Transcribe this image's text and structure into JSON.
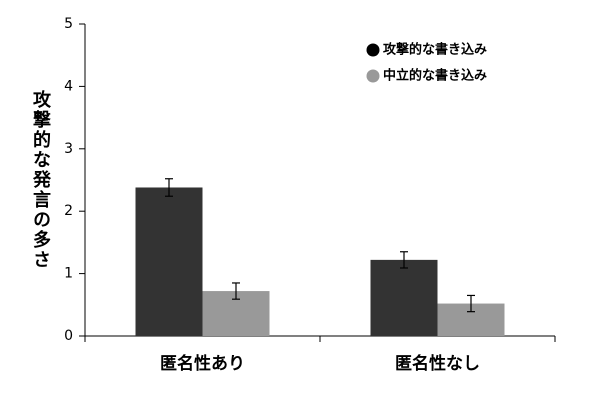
{
  "chart_data": {
    "type": "bar",
    "y_label": "攻撃的な発言の多さ",
    "categories": [
      "匿名性あり",
      "匿名性なし"
    ],
    "series": [
      {
        "name": "攻撃的な書き込み",
        "color": "#333333",
        "values": [
          2.38,
          1.22
        ],
        "errors": [
          0.14,
          0.13
        ]
      },
      {
        "name": "中立的な書き込み",
        "color": "#999999",
        "values": [
          0.72,
          0.52
        ],
        "errors": [
          0.13,
          0.13
        ]
      }
    ],
    "ylim": [
      0,
      5
    ],
    "yticks": [
      0,
      1,
      2,
      3,
      4,
      5
    ],
    "grid": false,
    "legend": "upper right"
  }
}
